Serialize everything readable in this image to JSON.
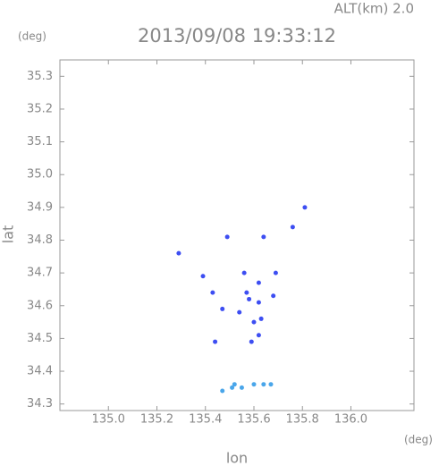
{
  "chart_data": {
    "type": "scatter",
    "title": "2013/09/08 19:33:12",
    "subtitle": "ALT(km) 2.0",
    "y_unit": "(deg)",
    "x_unit": "(deg)",
    "x_label": "lon",
    "y_label": "lat",
    "xlim": [
      134.8,
      136.26
    ],
    "ylim": [
      34.28,
      35.35
    ],
    "xticks": [
      {
        "value": 135.0,
        "label": "135.0"
      },
      135.2,
      135.4,
      135.6,
      135.8,
      {
        "value": 136.0,
        "label": "136.0"
      }
    ],
    "yticks": [
      34.3,
      34.4,
      34.5,
      34.6,
      34.7,
      34.8,
      34.9,
      {
        "value": 35.0,
        "label": "35.0"
      },
      35.1,
      35.2,
      35.3
    ],
    "series": [
      {
        "color": "#3d4ef2",
        "x": [
          135.81,
          135.76,
          135.64,
          135.49,
          135.29,
          135.39,
          135.56,
          135.69,
          135.62,
          135.43,
          135.57,
          135.58,
          135.68,
          135.62,
          135.47,
          135.54,
          135.63,
          135.6,
          135.62,
          135.44,
          135.59
        ],
        "values": [
          34.9,
          34.84,
          34.81,
          34.81,
          34.76,
          34.69,
          34.7,
          34.7,
          34.67,
          34.64,
          34.64,
          34.62,
          34.63,
          34.61,
          34.59,
          34.58,
          34.56,
          34.55,
          34.51,
          34.49,
          34.49
        ]
      },
      {
        "color": "#4aa6ea",
        "x": [
          135.67,
          135.64,
          135.6,
          135.55,
          135.52,
          135.51,
          135.47
        ],
        "values": [
          34.36,
          34.36,
          34.36,
          34.35,
          34.36,
          34.35,
          34.34
        ]
      }
    ]
  }
}
